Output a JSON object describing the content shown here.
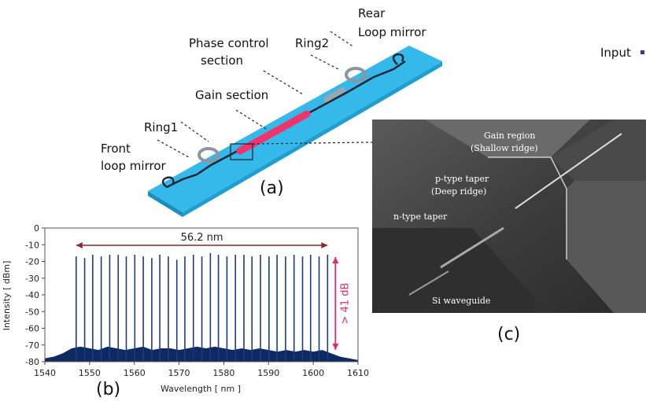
{
  "figure": {
    "panel_a": {
      "label": "(a)",
      "rear": [
        "Rear",
        "Loop mirror"
      ],
      "phase": [
        "Phase control",
        "section"
      ],
      "ring2": "Ring2",
      "gain": "Gain section",
      "ring1": "Ring1",
      "front": [
        "Front",
        "loop mirror"
      ]
    },
    "panel_b_label": "(b)",
    "panel_c": {
      "label": "(c)",
      "gain_region": [
        "Gain region",
        "(Shallow ridge)"
      ],
      "p_taper": [
        "p-type taper",
        "(Deep ridge)"
      ],
      "n_taper": "n-type taper",
      "si_waveguide": "Si waveguide"
    },
    "input_label": "Input"
  },
  "chart_data": {
    "type": "spectrum",
    "xlabel": "Wavelength [ nm ]",
    "ylabel": "Intensity [ dBm]",
    "annotations": {
      "span": "56.2 nm",
      "smsr": "> 41 dB"
    },
    "xlim": [
      1540,
      1610
    ],
    "xticks": [
      1540,
      1550,
      1560,
      1570,
      1580,
      1590,
      1600,
      1610
    ],
    "ylim": [
      -80,
      0
    ],
    "yticks": [
      0,
      -10,
      -20,
      -30,
      -40,
      -50,
      -60,
      -70,
      -80
    ],
    "series": [
      {
        "style": "area",
        "color": "#0d2a63",
        "x": [
          1540,
          1542,
          1544,
          1546,
          1548,
          1550,
          1552,
          1554,
          1556,
          1558,
          1560,
          1562,
          1564,
          1566,
          1568,
          1570,
          1572,
          1574,
          1576,
          1578,
          1580,
          1582,
          1584,
          1586,
          1588,
          1590,
          1592,
          1594,
          1596,
          1598,
          1600,
          1602,
          1604,
          1606,
          1608,
          1610
        ],
        "values": [
          -78,
          -77,
          -75,
          -72,
          -71,
          -72,
          -73,
          -71,
          -72,
          -73,
          -72,
          -71,
          -73,
          -72,
          -72,
          -73,
          -72,
          -71,
          -72,
          -71,
          -72,
          -73,
          -72,
          -73,
          -72,
          -73,
          -74,
          -73,
          -74,
          -73,
          -74,
          -73,
          -75,
          -77,
          -78,
          -79
        ]
      },
      {
        "style": "stem",
        "color": "#1f3a7a",
        "x": [
          1547.0,
          1548.9,
          1550.7,
          1552.6,
          1554.5,
          1556.4,
          1558.2,
          1560.1,
          1562.0,
          1563.9,
          1565.7,
          1567.6,
          1569.5,
          1571.3,
          1573.2,
          1575.1,
          1577.0,
          1578.8,
          1580.7,
          1582.6,
          1584.5,
          1586.3,
          1588.2,
          1590.1,
          1591.9,
          1593.8,
          1595.7,
          1597.6,
          1599.4,
          1601.3,
          1603.2
        ],
        "values": [
          -17,
          -18,
          -16,
          -17,
          -16,
          -16,
          -17,
          -16,
          -17,
          -18,
          -16,
          -17,
          -19,
          -17,
          -16,
          -17,
          -15,
          -16,
          -17,
          -16,
          -16,
          -17,
          -16,
          -17,
          -16,
          -17,
          -16,
          -17,
          -16,
          -17,
          -16
        ]
      }
    ]
  }
}
